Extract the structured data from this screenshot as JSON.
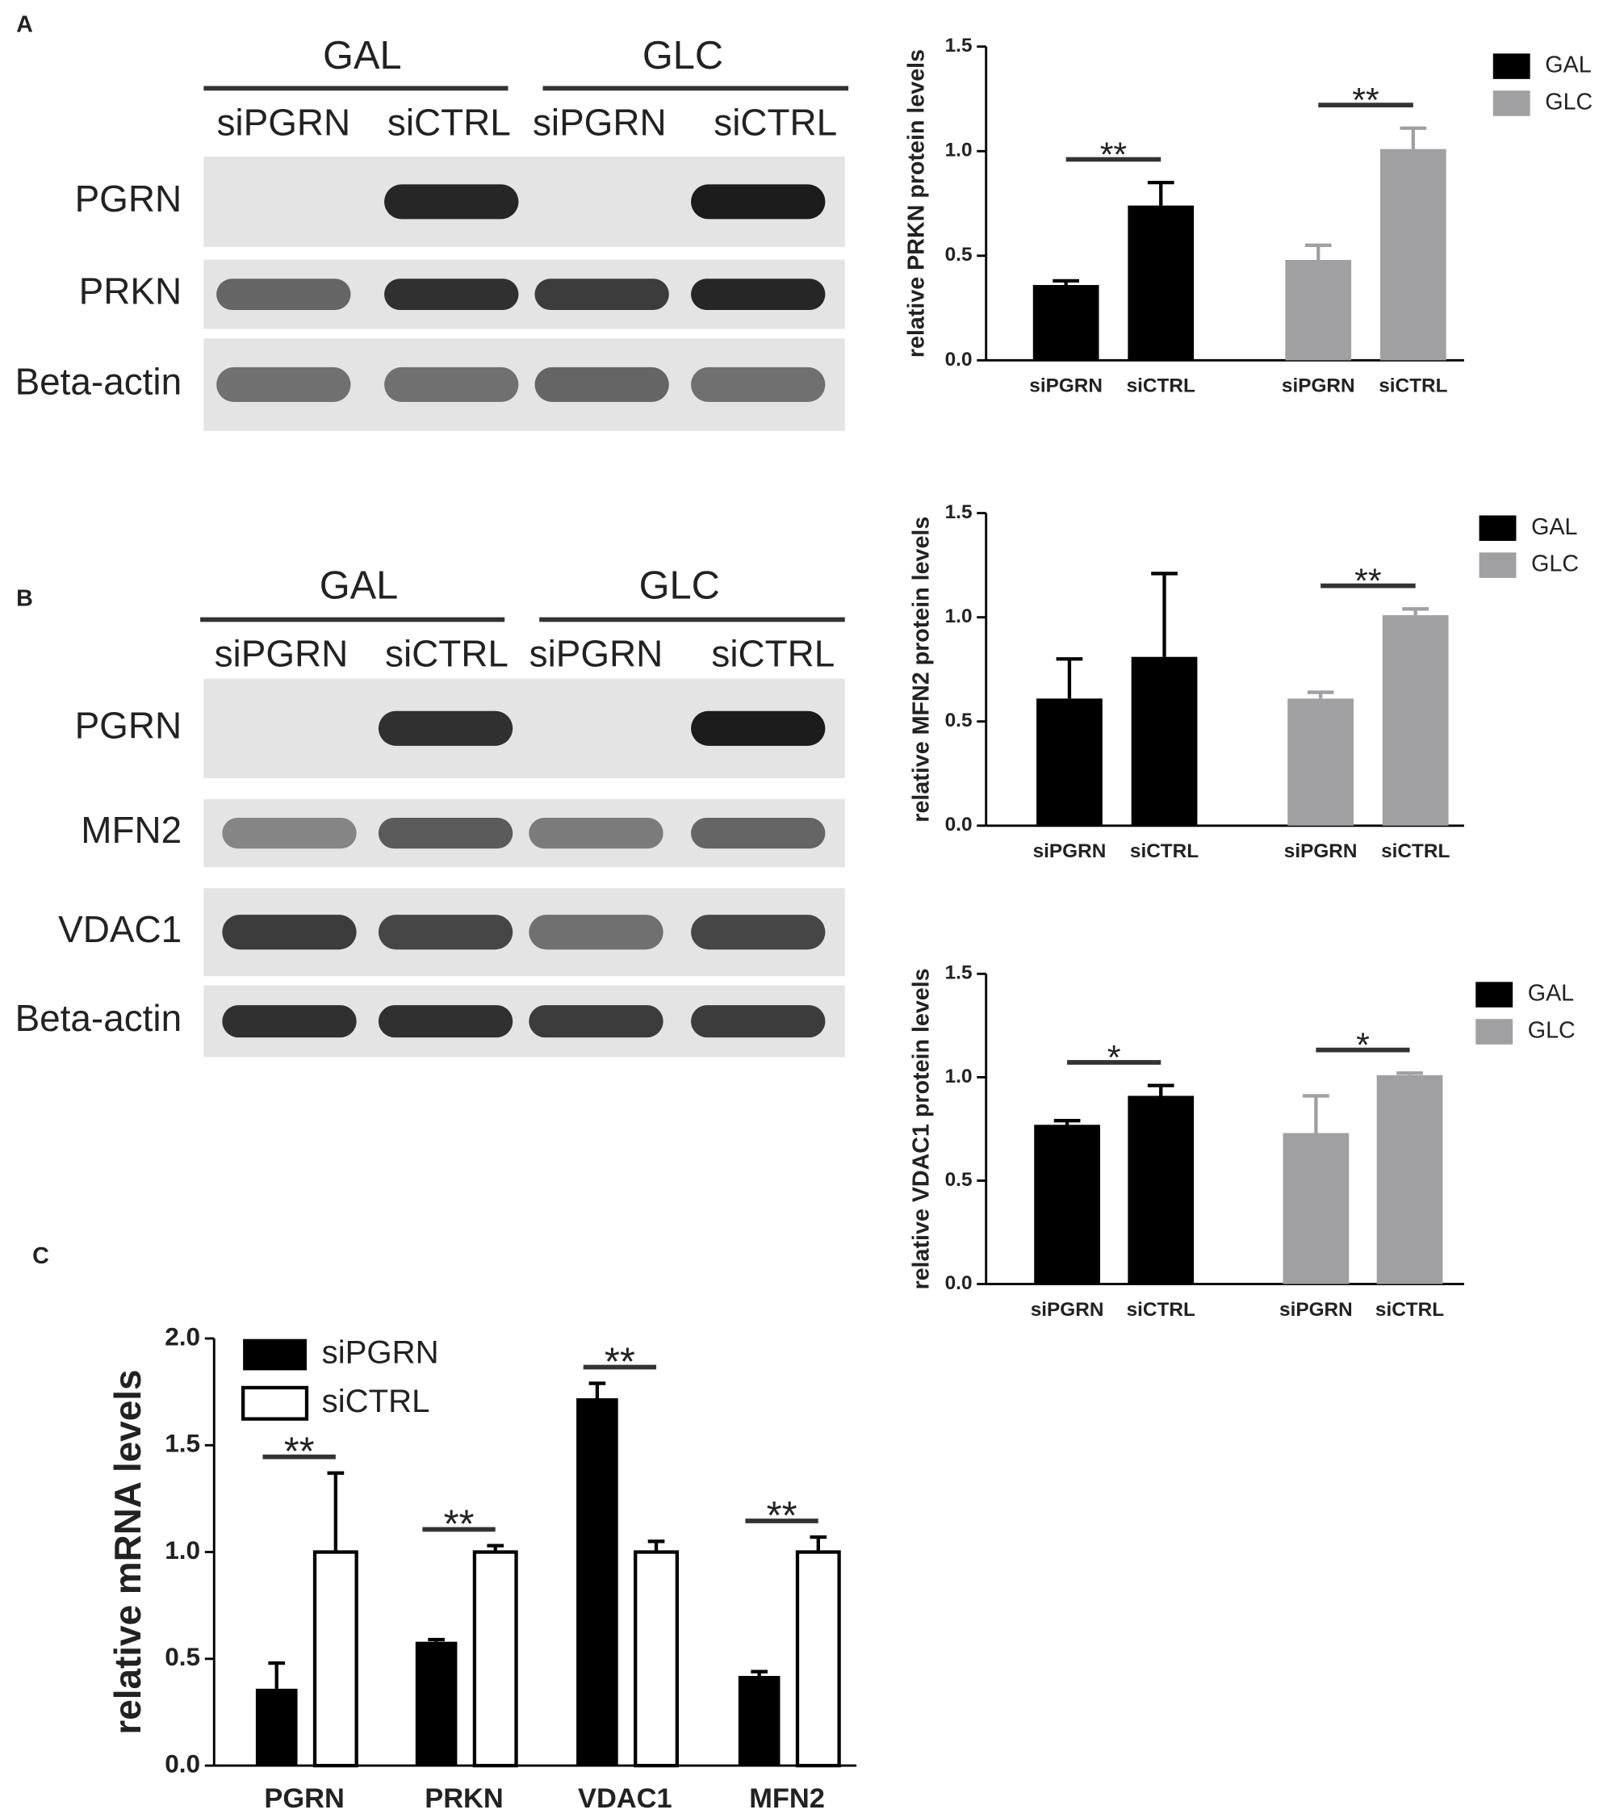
{
  "panels": [
    "A",
    "B",
    "C"
  ],
  "blots": [
    {
      "groups": [
        "GAL",
        "GLC"
      ],
      "lanes": [
        "siPGRN",
        "siCTRL",
        "siPGRN",
        "siCTRL"
      ],
      "rows": [
        "PGRN",
        "PRKN",
        "Beta-actin"
      ]
    },
    {
      "groups": [
        "GAL",
        "GLC"
      ],
      "lanes": [
        "siPGRN",
        "siCTRL",
        "siPGRN",
        "siCTRL"
      ],
      "rows": [
        "PGRN",
        "MFN2",
        "VDAC1",
        "Beta-actin"
      ]
    }
  ],
  "chart_data": [
    {
      "type": "bar",
      "ylabel": "relative PRKN protein levels",
      "categories": [
        "siPGRN",
        "siCTRL",
        "siPGRN",
        "siCTRL"
      ],
      "series": [
        {
          "name": "GAL",
          "color": "#000000",
          "values": [
            0.36,
            0.74,
            null,
            null
          ],
          "errors": [
            0.02,
            0.11,
            null,
            null
          ]
        },
        {
          "name": "GLC",
          "color": "#a0a0a2",
          "values": [
            null,
            null,
            0.48,
            1.01
          ],
          "errors": [
            null,
            null,
            0.07,
            0.1
          ]
        }
      ],
      "significance": [
        "**",
        "**"
      ],
      "ylim": [
        0,
        1.5
      ],
      "yticks": [
        {
          "value": 0,
          "label": "0.0"
        },
        0.5,
        {
          "value": 1,
          "label": "1.0"
        },
        1.5
      ]
    },
    {
      "type": "bar",
      "ylabel": "relative MFN2 protein levels",
      "categories": [
        "siPGRN",
        "siCTRL",
        "siPGRN",
        "siCTRL"
      ],
      "series": [
        {
          "name": "GAL",
          "color": "#000000",
          "values": [
            0.61,
            0.81,
            null,
            null
          ],
          "errors": [
            0.19,
            0.4,
            null,
            null
          ]
        },
        {
          "name": "GLC",
          "color": "#a0a0a2",
          "values": [
            null,
            null,
            0.61,
            1.01
          ],
          "errors": [
            null,
            null,
            0.03,
            0.03
          ]
        }
      ],
      "significance": [
        null,
        "**"
      ],
      "ylim": [
        0,
        1.5
      ],
      "yticks": [
        {
          "value": 0,
          "label": "0.0"
        },
        0.5,
        {
          "value": 1,
          "label": "1.0"
        },
        1.5
      ]
    },
    {
      "type": "bar",
      "ylabel": "relative VDAC1 protein levels",
      "categories": [
        "siPGRN",
        "siCTRL",
        "siPGRN",
        "siCTRL"
      ],
      "series": [
        {
          "name": "GAL",
          "color": "#000000",
          "values": [
            0.77,
            0.91,
            null,
            null
          ],
          "errors": [
            0.02,
            0.05,
            null,
            null
          ]
        },
        {
          "name": "GLC",
          "color": "#a0a0a2",
          "values": [
            null,
            null,
            0.73,
            1.01
          ],
          "errors": [
            null,
            null,
            0.18,
            0.01
          ]
        }
      ],
      "significance": [
        "*",
        "*"
      ],
      "ylim": [
        0,
        1.5
      ],
      "yticks": [
        {
          "value": 0,
          "label": "0.0"
        },
        0.5,
        {
          "value": 1,
          "label": "1.0"
        },
        1.5
      ]
    },
    {
      "type": "bar",
      "ylabel": "relative mRNA levels",
      "categories": [
        "PGRN",
        "PRKN",
        "VDAC1",
        "MFN2"
      ],
      "series": [
        {
          "name": "siPGRN",
          "color": "#000000",
          "values": [
            0.36,
            0.58,
            1.72,
            0.42
          ],
          "errors": [
            0.12,
            0.01,
            0.07,
            0.02
          ]
        },
        {
          "name": "siCTRL",
          "color": "#ffffff",
          "values": [
            1.0,
            1.0,
            1.0,
            1.0
          ],
          "errors": [
            0.37,
            0.03,
            0.05,
            0.07
          ]
        }
      ],
      "significance": [
        "**",
        "**",
        "**",
        "**"
      ],
      "ylim": [
        0,
        2
      ],
      "yticks": [
        {
          "value": 0,
          "label": "0.0"
        },
        0.5,
        {
          "value": 1,
          "label": "1.0"
        },
        1.5,
        {
          "value": 2,
          "label": "2.0"
        }
      ]
    }
  ]
}
